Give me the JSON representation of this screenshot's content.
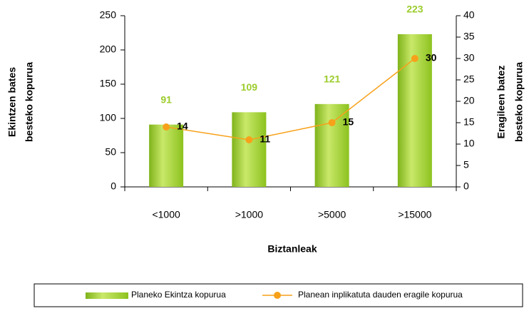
{
  "chart_data": {
    "type": "bar",
    "categories": [
      "<1000",
      ">1000",
      ">5000",
      ">15000"
    ],
    "xlabel": "Biztanleak",
    "ylabel": [
      "Ekintzen bates",
      "besteko kopurua"
    ],
    "y2label": [
      "Eragileen batez",
      "besteko kopurua"
    ],
    "series": [
      {
        "name": "Planeko Ekintza kopurua",
        "type": "bar",
        "color": "#9ccc2c",
        "values": [
          91,
          109,
          121,
          223
        ]
      },
      {
        "name": "Planean inplikatuta dauden eragile kopurua",
        "type": "line",
        "axis": "y2",
        "color": "#f7a11a",
        "values": [
          14,
          11,
          15,
          30
        ]
      }
    ],
    "ylim": [
      0,
      250
    ],
    "yticks": [
      0,
      50,
      100,
      150,
      200,
      250
    ],
    "y2lim": [
      0,
      40
    ],
    "y2ticks": [
      0,
      5,
      10,
      15,
      20,
      25,
      30,
      35,
      40
    ],
    "grid": false,
    "legend": "bottom"
  }
}
